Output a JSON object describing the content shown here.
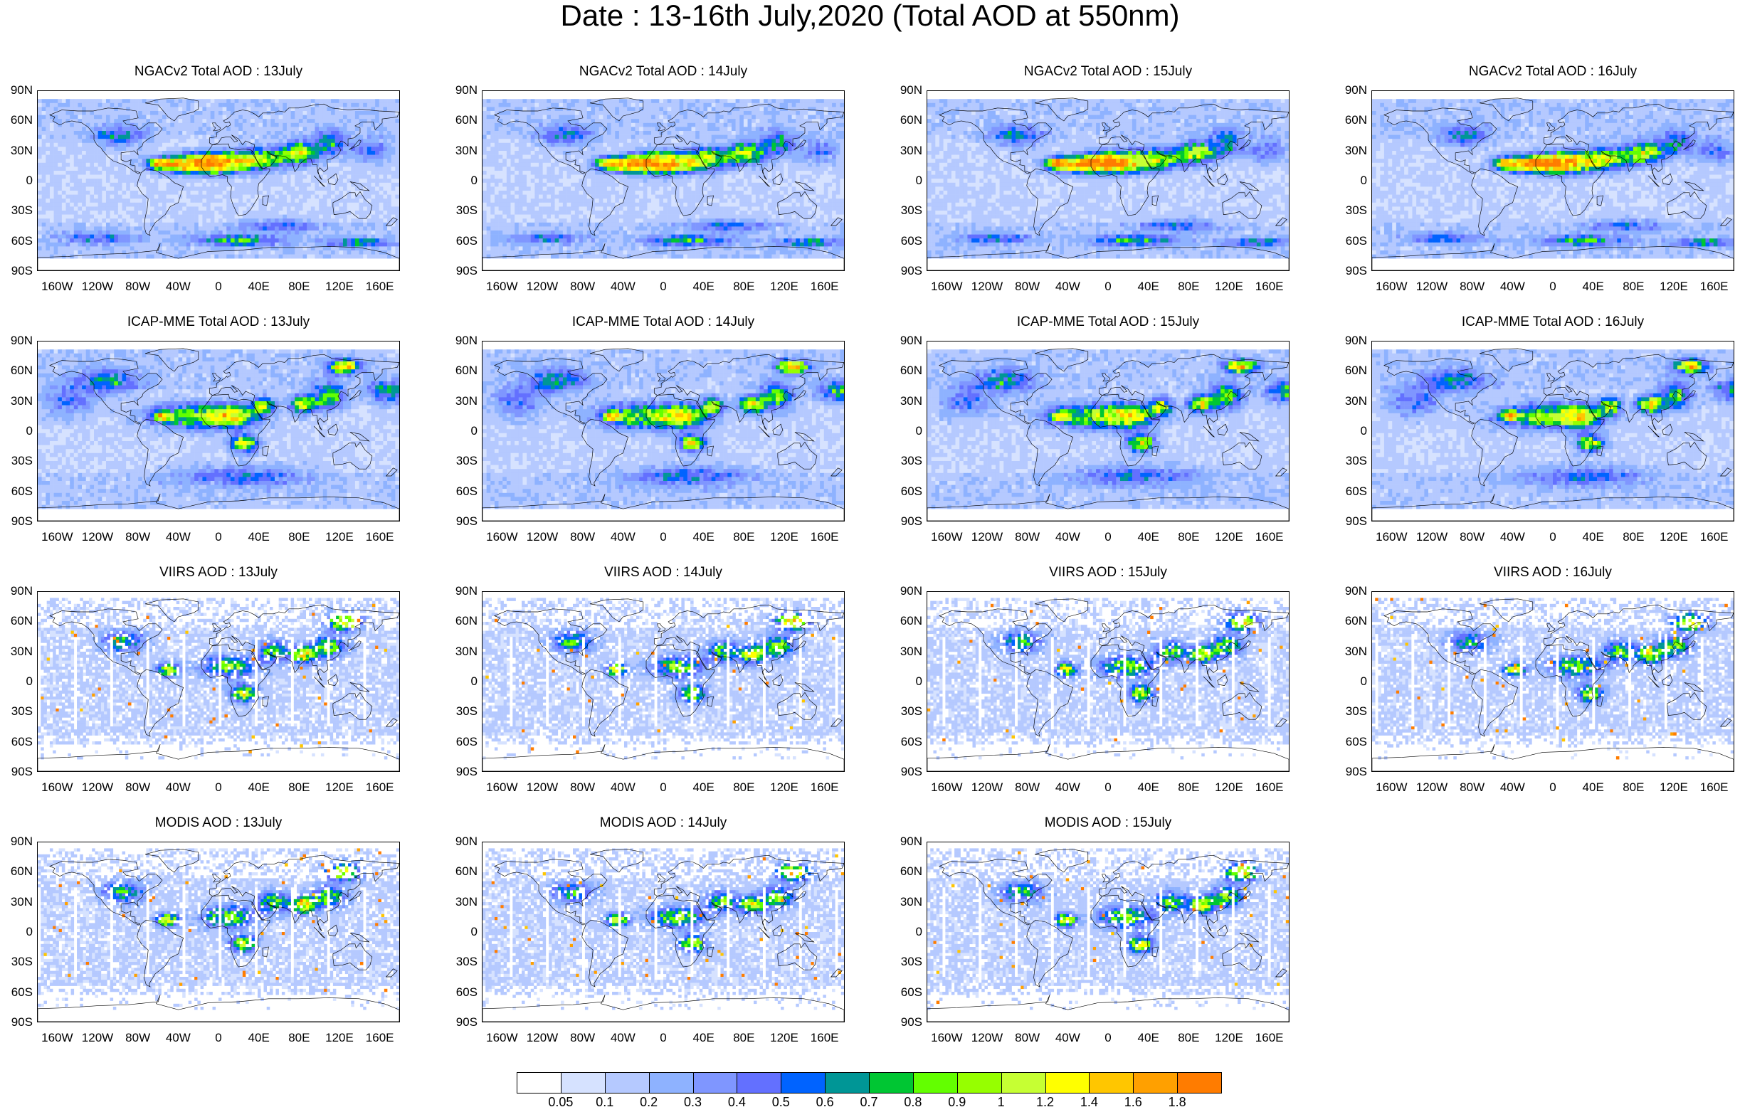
{
  "title": "Date : 13-16th July,2020 (Total AOD at 550nm)",
  "panels": [
    {
      "title": "NGACv2 Total AOD : 13July",
      "field": "model",
      "day": 13
    },
    {
      "title": "NGACv2 Total AOD : 14July",
      "field": "model",
      "day": 14
    },
    {
      "title": "NGACv2 Total AOD : 15July",
      "field": "model",
      "day": 15
    },
    {
      "title": "NGACv2 Total AOD : 16July",
      "field": "model",
      "day": 16
    },
    {
      "title": "ICAP-MME Total AOD : 13July",
      "field": "ensemble",
      "day": 13
    },
    {
      "title": "ICAP-MME Total AOD : 14July",
      "field": "ensemble",
      "day": 14
    },
    {
      "title": "ICAP-MME Total AOD : 15July",
      "field": "ensemble",
      "day": 15
    },
    {
      "title": "ICAP-MME Total AOD : 16July",
      "field": "ensemble",
      "day": 16
    },
    {
      "title": "VIIRS AOD : 13July",
      "field": "satellite",
      "day": 13
    },
    {
      "title": "VIIRS AOD : 14July",
      "field": "satellite",
      "day": 14
    },
    {
      "title": "VIIRS AOD : 15July",
      "field": "satellite",
      "day": 15
    },
    {
      "title": "VIIRS AOD : 16July",
      "field": "satellite",
      "day": 16
    },
    {
      "title": "MODIS AOD : 13July",
      "field": "satellite",
      "day": 13
    },
    {
      "title": "MODIS AOD : 14July",
      "field": "satellite",
      "day": 14
    },
    {
      "title": "MODIS AOD : 15July",
      "field": "satellite",
      "day": 15
    }
  ],
  "lat_ticks": [
    "90N",
    "60N",
    "30N",
    "0",
    "30S",
    "60S",
    "90S"
  ],
  "lon_ticks": [
    "160W",
    "120W",
    "80W",
    "40W",
    "0",
    "40E",
    "80E",
    "120E",
    "160E"
  ],
  "colorbar": {
    "colors": [
      "#ffffff",
      "#d6e2ff",
      "#b5c9ff",
      "#8eb2ff",
      "#7f96ff",
      "#6370ff",
      "#0063ff",
      "#009696",
      "#00c633",
      "#63ff00",
      "#96ff00",
      "#c6ff33",
      "#ffff00",
      "#ffc600",
      "#ffa000",
      "#ff7c00",
      "#ff1900"
    ],
    "labels": [
      "0.05",
      "0.1",
      "0.2",
      "0.3",
      "0.4",
      "0.5",
      "0.6",
      "0.7",
      "0.8",
      "0.9",
      "1",
      "1.2",
      "1.4",
      "1.6",
      "1.8"
    ]
  }
}
